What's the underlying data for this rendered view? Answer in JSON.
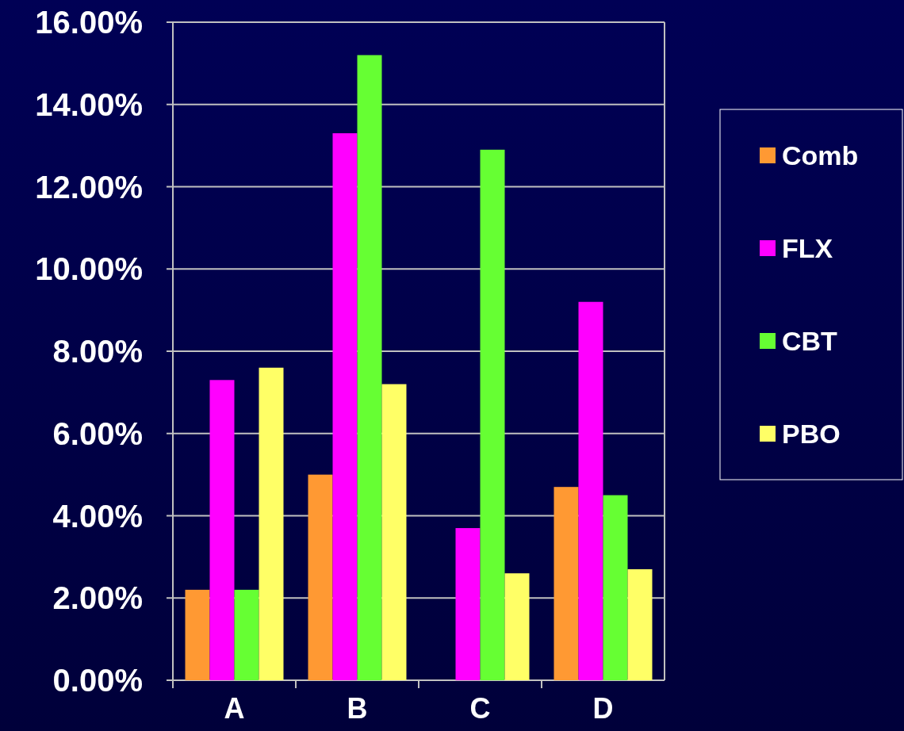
{
  "chart_data": {
    "type": "bar",
    "categories": [
      "A",
      "B",
      "C",
      "D"
    ],
    "series": [
      {
        "name": "Comb",
        "color": "#ff9933",
        "values": [
          2.2,
          5.0,
          0,
          4.7
        ]
      },
      {
        "name": "FLX",
        "color": "#ff00ff",
        "values": [
          7.3,
          13.3,
          3.7,
          9.2
        ]
      },
      {
        "name": "CBT",
        "color": "#66ff33",
        "values": [
          2.2,
          15.2,
          12.9,
          4.5
        ]
      },
      {
        "name": "PBO",
        "color": "#ffff66",
        "values": [
          7.6,
          7.2,
          2.6,
          2.7
        ]
      }
    ],
    "ylim": [
      0,
      16
    ],
    "yticks": [
      {
        "value": 0,
        "label": "0.00%"
      },
      {
        "value": 2,
        "label": "2.00%"
      },
      {
        "value": 4,
        "label": "4.00%"
      },
      {
        "value": 6,
        "label": "6.00%"
      },
      {
        "value": 8,
        "label": "8.00%"
      },
      {
        "value": 10,
        "label": "10.00%"
      },
      {
        "value": 12,
        "label": "12.00%"
      },
      {
        "value": 14,
        "label": "14.00%"
      },
      {
        "value": 16,
        "label": "16.00%"
      }
    ],
    "grid": "y",
    "legend": "right"
  }
}
